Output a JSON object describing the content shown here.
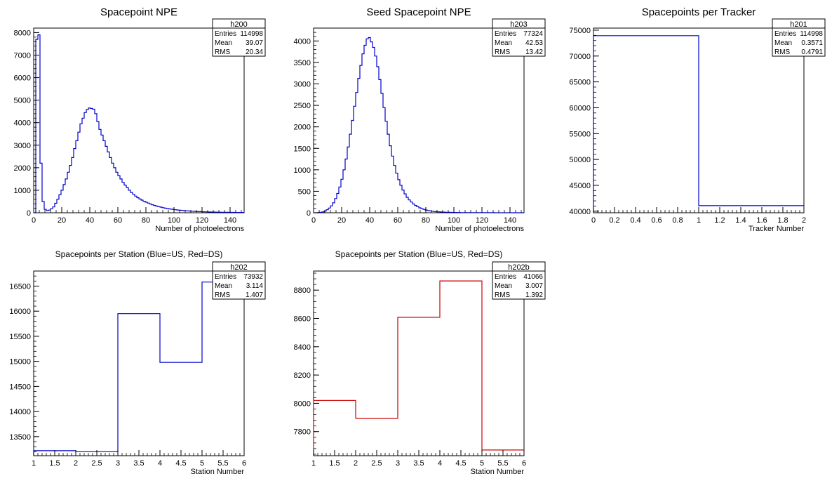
{
  "colors": {
    "us": "#0000cc",
    "ds": "#cc0000",
    "axis": "#000000",
    "background": "#ffffff"
  },
  "chart_data": [
    {
      "type": "bar",
      "title": "Spacepoint NPE",
      "xlabel": "Number of photoelectrons",
      "ylabel": "",
      "xlim": [
        0,
        150
      ],
      "ylim": [
        0,
        8200
      ],
      "xticks": [
        0,
        20,
        40,
        60,
        80,
        100,
        120,
        140
      ],
      "yticks": [
        0,
        1000,
        2000,
        3000,
        4000,
        5000,
        6000,
        7000,
        8000
      ],
      "bin_edges_start": 0,
      "bin_width": 1.5,
      "series": [
        {
          "color": "#0000cc",
          "values": [
            0,
            7700,
            7900,
            2200,
            500,
            150,
            100,
            120,
            180,
            260,
            420,
            600,
            800,
            1000,
            1250,
            1500,
            1800,
            2100,
            2450,
            2850,
            3200,
            3580,
            3950,
            4200,
            4450,
            4580,
            4650,
            4630,
            4600,
            4400,
            4050,
            3700,
            3450,
            3200,
            2950,
            2700,
            2450,
            2200,
            2000,
            1800,
            1650,
            1500,
            1350,
            1230,
            1120,
            1000,
            900,
            820,
            740,
            670,
            610,
            560,
            510,
            470,
            430,
            390,
            355,
            325,
            295,
            270,
            248,
            225,
            205,
            188,
            172,
            158,
            145,
            133,
            122,
            112,
            103,
            95,
            87,
            80,
            74,
            68,
            63,
            58,
            53,
            49,
            45,
            41,
            38,
            35,
            32,
            30,
            28,
            26,
            24,
            22,
            20,
            19,
            18,
            17,
            16,
            15,
            14,
            13,
            12,
            11
          ]
        }
      ],
      "stats": {
        "name": "h200",
        "entries_label": "Entries",
        "entries": "114998",
        "mean_label": "Mean",
        "mean": "39.07",
        "rms_label": "RMS",
        "rms": "20.34"
      }
    },
    {
      "type": "bar",
      "title": "Seed Spacepoint NPE",
      "xlabel": "Number of photoelectrons",
      "ylabel": "",
      "xlim": [
        0,
        150
      ],
      "ylim": [
        0,
        4300
      ],
      "xticks": [
        0,
        20,
        40,
        60,
        80,
        100,
        120,
        140
      ],
      "yticks": [
        0,
        500,
        1000,
        1500,
        2000,
        2500,
        3000,
        3500,
        4000
      ],
      "bin_edges_start": 0,
      "bin_width": 1.5,
      "series": [
        {
          "color": "#0000cc",
          "values": [
            0,
            0,
            5,
            10,
            20,
            40,
            70,
            110,
            160,
            230,
            330,
            450,
            600,
            780,
            1000,
            1250,
            1530,
            1830,
            2150,
            2480,
            2800,
            3130,
            3430,
            3700,
            3900,
            4050,
            4080,
            3980,
            3850,
            3650,
            3400,
            3100,
            2780,
            2450,
            2130,
            1830,
            1560,
            1320,
            1100,
            920,
            770,
            640,
            530,
            440,
            360,
            300,
            250,
            205,
            170,
            140,
            115,
            95,
            78,
            64,
            53,
            44,
            36,
            30,
            25,
            21,
            18,
            15,
            13,
            11,
            9,
            8,
            7,
            6,
            5,
            5,
            4,
            4,
            3,
            3,
            3,
            2,
            2,
            2,
            2,
            1,
            1,
            1,
            1,
            1,
            1,
            1,
            0,
            0,
            0,
            0,
            0,
            0,
            0,
            0,
            0,
            0,
            0,
            0,
            0,
            0
          ]
        }
      ],
      "stats": {
        "name": "h203",
        "entries_label": "Entries",
        "entries": "77324",
        "mean_label": "Mean",
        "mean": "42.53",
        "rms_label": "RMS",
        "rms": "13.42"
      }
    },
    {
      "type": "bar",
      "title": "Spacepoints per Tracker",
      "xlabel": "Tracker Number",
      "ylabel": "",
      "xlim": [
        0,
        2
      ],
      "ylim": [
        39700,
        75400
      ],
      "xticks": [
        0,
        0.2,
        0.4,
        0.6,
        0.8,
        1,
        1.2,
        1.4,
        1.6,
        1.8,
        2
      ],
      "yticks": [
        40000,
        45000,
        50000,
        55000,
        60000,
        65000,
        70000,
        75000
      ],
      "bin_edges_start": 0,
      "bin_width": 1,
      "series": [
        {
          "color": "#0000cc",
          "values": [
            73932,
            41066
          ]
        }
      ],
      "stats": {
        "name": "h201",
        "entries_label": "Entries",
        "entries": "114998",
        "mean_label": "Mean",
        "mean": "0.3571",
        "rms_label": "RMS",
        "rms": "0.4791"
      }
    },
    {
      "type": "bar",
      "title": "Spacepoints per Station (Blue=US, Red=DS)",
      "xlabel": "Station Number",
      "ylabel": "",
      "xlim": [
        1,
        6
      ],
      "ylim": [
        13120,
        16800
      ],
      "xticks": [
        1,
        1.5,
        2,
        2.5,
        3,
        3.5,
        4,
        4.5,
        5,
        5.5,
        6
      ],
      "yticks": [
        13500,
        14000,
        14500,
        15000,
        15500,
        16000,
        16500
      ],
      "bin_edges_start": 1,
      "bin_width": 1,
      "series": [
        {
          "color": "#0000cc",
          "values": [
            13220,
            13200,
            15950,
            14980,
            16580
          ]
        }
      ],
      "stats": {
        "name": "h202",
        "entries_label": "Entries",
        "entries": "73932",
        "mean_label": "Mean",
        "mean": "3.114",
        "rms_label": "RMS",
        "rms": "1.407"
      }
    },
    {
      "type": "bar",
      "title": "Spacepoints per Station (Blue=US, Red=DS)",
      "xlabel": "Station Number",
      "ylabel": "",
      "xlim": [
        1,
        6
      ],
      "ylim": [
        7630,
        8935
      ],
      "xticks": [
        1,
        1.5,
        2,
        2.5,
        3,
        3.5,
        4,
        4.5,
        5,
        5.5,
        6
      ],
      "yticks": [
        7800,
        8000,
        8200,
        8400,
        8600,
        8800
      ],
      "bin_edges_start": 1,
      "bin_width": 1,
      "series": [
        {
          "color": "#cc0000",
          "values": [
            8020,
            7895,
            8608,
            8865,
            7670
          ]
        }
      ],
      "stats": {
        "name": "h202b",
        "entries_label": "Entries",
        "entries": "41066",
        "mean_label": "Mean",
        "mean": "3.007",
        "rms_label": "RMS",
        "rms": "1.392"
      }
    }
  ]
}
